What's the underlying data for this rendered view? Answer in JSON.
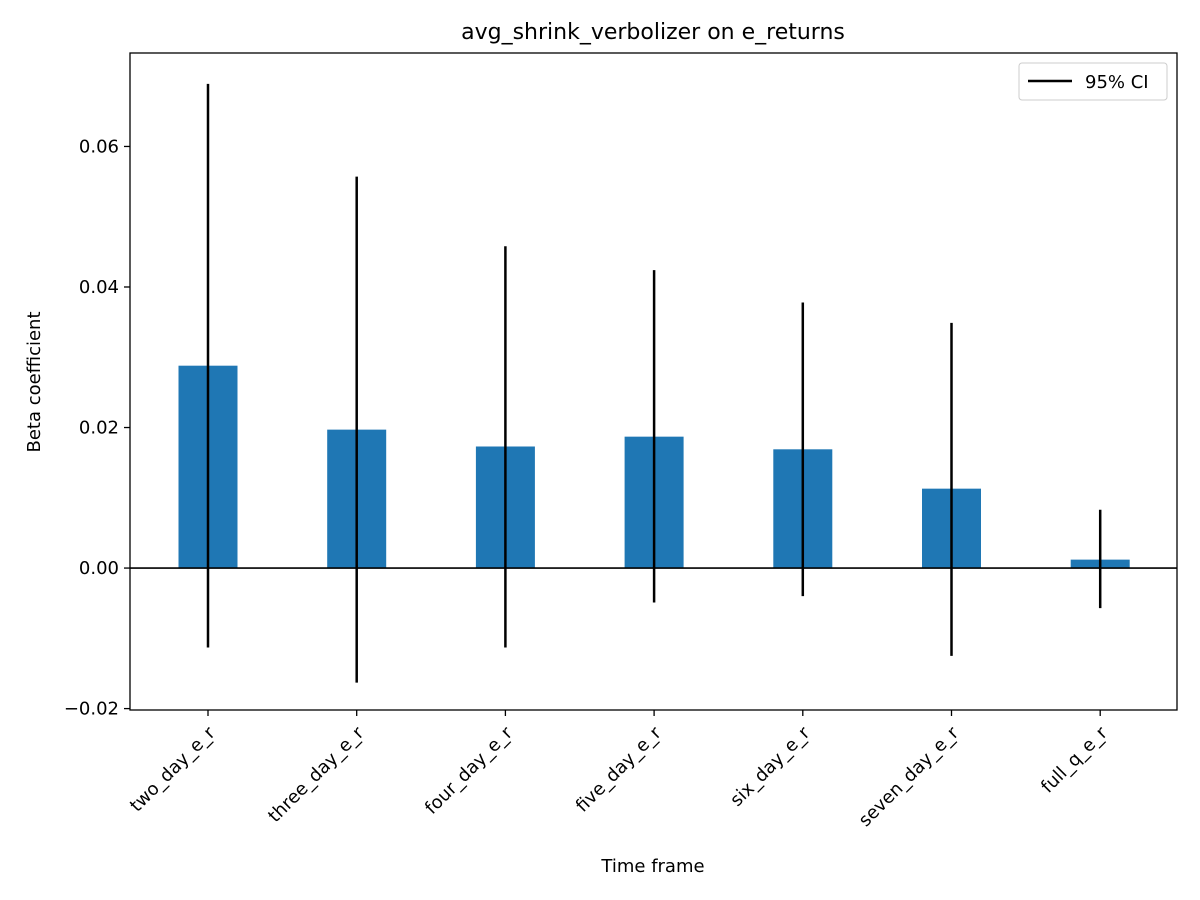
{
  "chart_data": {
    "type": "bar",
    "title": "avg_shrink_verbolizer on e_returns",
    "xlabel": "Time frame",
    "ylabel": "Beta coefficient",
    "categories": [
      "two_day_e_r",
      "three_day_e_r",
      "four_day_e_r",
      "five_day_e_r",
      "six_day_e_r",
      "seven_day_e_r",
      "full_q_e_r"
    ],
    "values": [
      0.0288,
      0.0197,
      0.0173,
      0.0187,
      0.0169,
      0.0113,
      0.0012
    ],
    "ci_lower": [
      -0.0113,
      -0.0163,
      -0.0113,
      -0.0049,
      -0.004,
      -0.0125,
      -0.0057
    ],
    "ci_upper": [
      0.0689,
      0.0557,
      0.0458,
      0.0424,
      0.0378,
      0.0349,
      0.0083
    ],
    "ylim": [
      -0.0202,
      0.0733
    ],
    "yticks": [
      -0.02,
      0.0,
      0.02,
      0.04,
      0.06
    ],
    "ytick_labels": [
      "−0.02",
      "0.00",
      "0.02",
      "0.04",
      "0.06"
    ],
    "zero_line": true,
    "grid": false,
    "legend": {
      "placement": "top-right",
      "entries": [
        {
          "label": "95% CI",
          "style": "line",
          "color": "#000000"
        }
      ]
    },
    "colors": {
      "bar": "#1f77b4",
      "errorbar": "#000000"
    }
  }
}
